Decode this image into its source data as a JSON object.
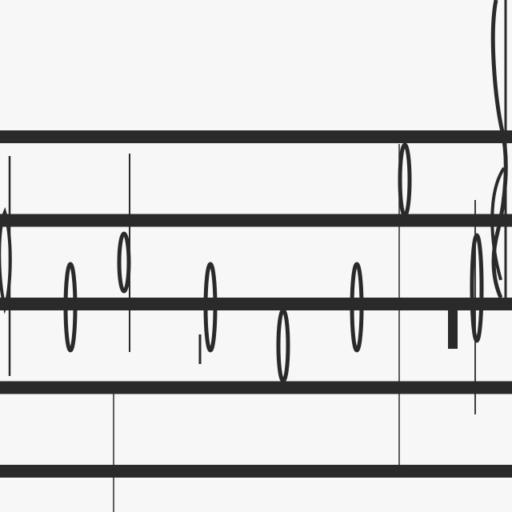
{
  "score": {
    "ink_color": "#2a2a2a",
    "paper_color": "#f7f7f7",
    "staff_line_count": 5,
    "barline_count": 2,
    "symbols": [
      "treble-clef",
      "half-note",
      "half-note",
      "half-note",
      "half-note",
      "half-note",
      "half-note",
      "half-note",
      "half-rest"
    ]
  }
}
